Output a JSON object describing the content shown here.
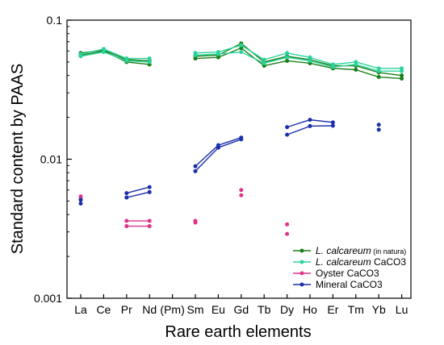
{
  "chart_data": {
    "type": "line",
    "ylabel": "Standard content by PAAS",
    "xlabel": "Rare earth elements",
    "yscale": "log",
    "ylim": [
      0.001,
      0.1
    ],
    "yticks": [
      0.001,
      0.01,
      0.1
    ],
    "yticklabels": [
      "0.001",
      "0.01",
      "0.1"
    ],
    "categories": [
      "La",
      "Ce",
      "Pr",
      "Nd",
      "(Pm)",
      "Sm",
      "Eu",
      "Gd",
      "Tb",
      "Dy",
      "Ho",
      "Er",
      "Tm",
      "Yb",
      "Lu"
    ],
    "legend_position": "bottom-right",
    "series": [
      {
        "label_main": "L. calcareum",
        "label_suffix": "(in natura)",
        "color": "#1a7f1a",
        "runs": [
          [
            0.056,
            0.06,
            0.05,
            0.048,
            null,
            0.053,
            0.054,
            0.063,
            0.047,
            0.051,
            0.049,
            0.045,
            0.044,
            0.039,
            0.038
          ],
          [
            0.058,
            0.061,
            0.052,
            0.051,
            null,
            0.055,
            0.056,
            0.068,
            0.05,
            0.055,
            0.052,
            0.047,
            0.047,
            0.042,
            0.04
          ]
        ]
      },
      {
        "label_main": "L. calcareum",
        "label_suffix": "CaCO3",
        "color": "#2bd39a",
        "runs": [
          [
            0.055,
            0.059,
            0.051,
            0.05,
            null,
            0.056,
            0.057,
            0.059,
            0.049,
            0.054,
            0.051,
            0.046,
            0.048,
            0.043,
            0.043
          ],
          [
            0.057,
            0.062,
            0.053,
            0.053,
            null,
            0.058,
            0.059,
            0.066,
            0.052,
            0.058,
            0.054,
            0.048,
            0.05,
            0.045,
            0.045
          ]
        ]
      },
      {
        "label_main": "Oyster CaCO3",
        "label_suffix": "",
        "color": "#e0338a",
        "runs": [
          [
            0.0054,
            null,
            0.0036,
            0.0036,
            null,
            0.0036,
            null,
            0.006,
            null,
            0.0034,
            null,
            null,
            null,
            null,
            null
          ],
          [
            0.0052,
            null,
            0.0033,
            0.0033,
            null,
            0.0035,
            null,
            0.0055,
            null,
            0.0029,
            null,
            null,
            null,
            null,
            null
          ]
        ]
      },
      {
        "label_main": "Mineral CaCO3",
        "label_suffix": "",
        "color": "#1a2fa8",
        "runs": [
          [
            0.0051,
            null,
            0.0057,
            0.0063,
            null,
            0.0089,
            0.0126,
            0.0143,
            null,
            0.017,
            0.0192,
            0.0184,
            null,
            0.0177,
            null
          ],
          [
            0.0048,
            null,
            0.0053,
            0.0058,
            null,
            0.0082,
            0.0121,
            0.0139,
            null,
            0.015,
            0.0173,
            0.0174,
            null,
            0.0163,
            null
          ]
        ]
      }
    ]
  }
}
